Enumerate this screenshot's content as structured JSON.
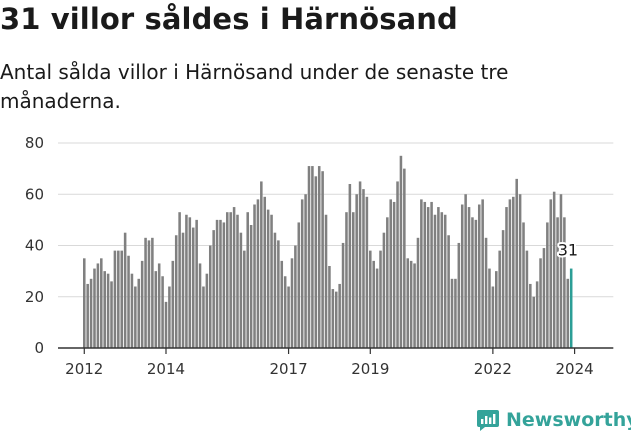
{
  "title": "31 villor såldes i Härnösand",
  "subtitle": "Antal sålda villor i Härnösand under de senaste tre månaderna.",
  "brand": {
    "name": "Newsworthy",
    "color": "#34a39a"
  },
  "colors": {
    "bar": "#808080",
    "highlight": "#2c9e96",
    "grid": "#d9d9d9",
    "axis": "#333333"
  },
  "chart_data": {
    "type": "bar",
    "title": "31 villor såldes i Härnösand",
    "xlabel": "",
    "ylabel": "",
    "ylim": [
      0,
      80
    ],
    "yticks": [
      0,
      20,
      40,
      60,
      80
    ],
    "xticks": [
      "2012",
      "2014",
      "2017",
      "2019",
      "2022",
      "2024"
    ],
    "grid": true,
    "start": "2012-01",
    "frequency": "monthly",
    "annotation": {
      "label": "31",
      "value": 31,
      "target": "last"
    },
    "values": [
      35,
      25,
      27,
      31,
      33,
      35,
      30,
      29,
      26,
      38,
      38,
      38,
      45,
      36,
      29,
      24,
      27,
      34,
      43,
      42,
      43,
      30,
      33,
      28,
      18,
      24,
      34,
      44,
      53,
      45,
      52,
      51,
      47,
      50,
      33,
      24,
      29,
      40,
      46,
      50,
      50,
      49,
      53,
      53,
      55,
      52,
      45,
      38,
      53,
      48,
      56,
      58,
      65,
      59,
      54,
      52,
      45,
      42,
      34,
      28,
      24,
      35,
      40,
      49,
      58,
      60,
      71,
      71,
      67,
      71,
      69,
      52,
      32,
      23,
      22,
      25,
      41,
      53,
      64,
      53,
      60,
      65,
      62,
      59,
      38,
      34,
      31,
      38,
      45,
      51,
      58,
      57,
      65,
      75,
      70,
      35,
      34,
      33,
      43,
      58,
      57,
      55,
      57,
      52,
      55,
      53,
      52,
      44,
      27,
      27,
      41,
      56,
      60,
      55,
      51,
      50,
      56,
      58,
      43,
      31,
      24,
      30,
      38,
      46,
      55,
      58,
      59,
      66,
      60,
      49,
      38,
      25,
      20,
      26,
      35,
      39,
      49,
      58,
      61,
      51,
      60,
      51,
      27,
      31
    ]
  }
}
